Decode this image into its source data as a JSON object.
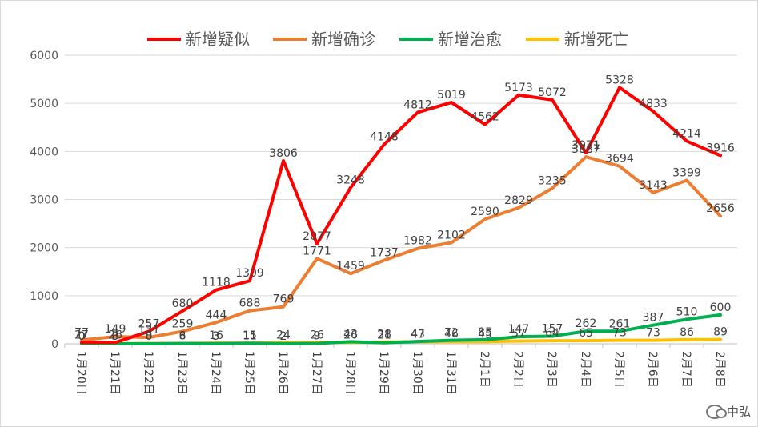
{
  "watermark": "中弘",
  "chart_data": {
    "type": "line",
    "title": "",
    "xlabel": "",
    "ylabel": "",
    "ylim": [
      0,
      6000
    ],
    "yticks": [
      0,
      1000,
      2000,
      3000,
      4000,
      5000,
      6000
    ],
    "grid": true,
    "legend_position": "top",
    "categories": [
      "1月20日",
      "1月21日",
      "1月22日",
      "1月23日",
      "1月24日",
      "1月25日",
      "1月26日",
      "1月27日",
      "1月28日",
      "1月29日",
      "1月30日",
      "1月31日",
      "2月1日",
      "2月2日",
      "2月3日",
      "2月4日",
      "2月5日",
      "2月6日",
      "2月7日",
      "2月8日"
    ],
    "series": [
      {
        "name": "新增疑似",
        "color": "#ff0000",
        "values": [
          27,
          26,
          257,
          680,
          1118,
          1309,
          3806,
          2077,
          3248,
          4148,
          4812,
          5019,
          4562,
          5173,
          5072,
          3971,
          5328,
          4833,
          4214,
          3916
        ]
      },
      {
        "name": "新增确诊",
        "color": "#ed7d31",
        "values": [
          77,
          149,
          131,
          259,
          444,
          688,
          769,
          1771,
          1459,
          1737,
          1982,
          2102,
          2590,
          2829,
          3235,
          3887,
          3694,
          3143,
          3399,
          2656
        ]
      },
      {
        "name": "新增治愈",
        "color": "#00b050",
        "values": [
          0,
          0,
          0,
          6,
          3,
          11,
          2,
          9,
          43,
          21,
          47,
          72,
          85,
          147,
          157,
          262,
          261,
          387,
          510,
          600
        ]
      },
      {
        "name": "新增死亡",
        "color": "#ffc000",
        "values": [
          0,
          3,
          8,
          8,
          16,
          15,
          24,
          26,
          26,
          38,
          43,
          46,
          45,
          57,
          64,
          65,
          73,
          73,
          86,
          89
        ]
      }
    ]
  }
}
